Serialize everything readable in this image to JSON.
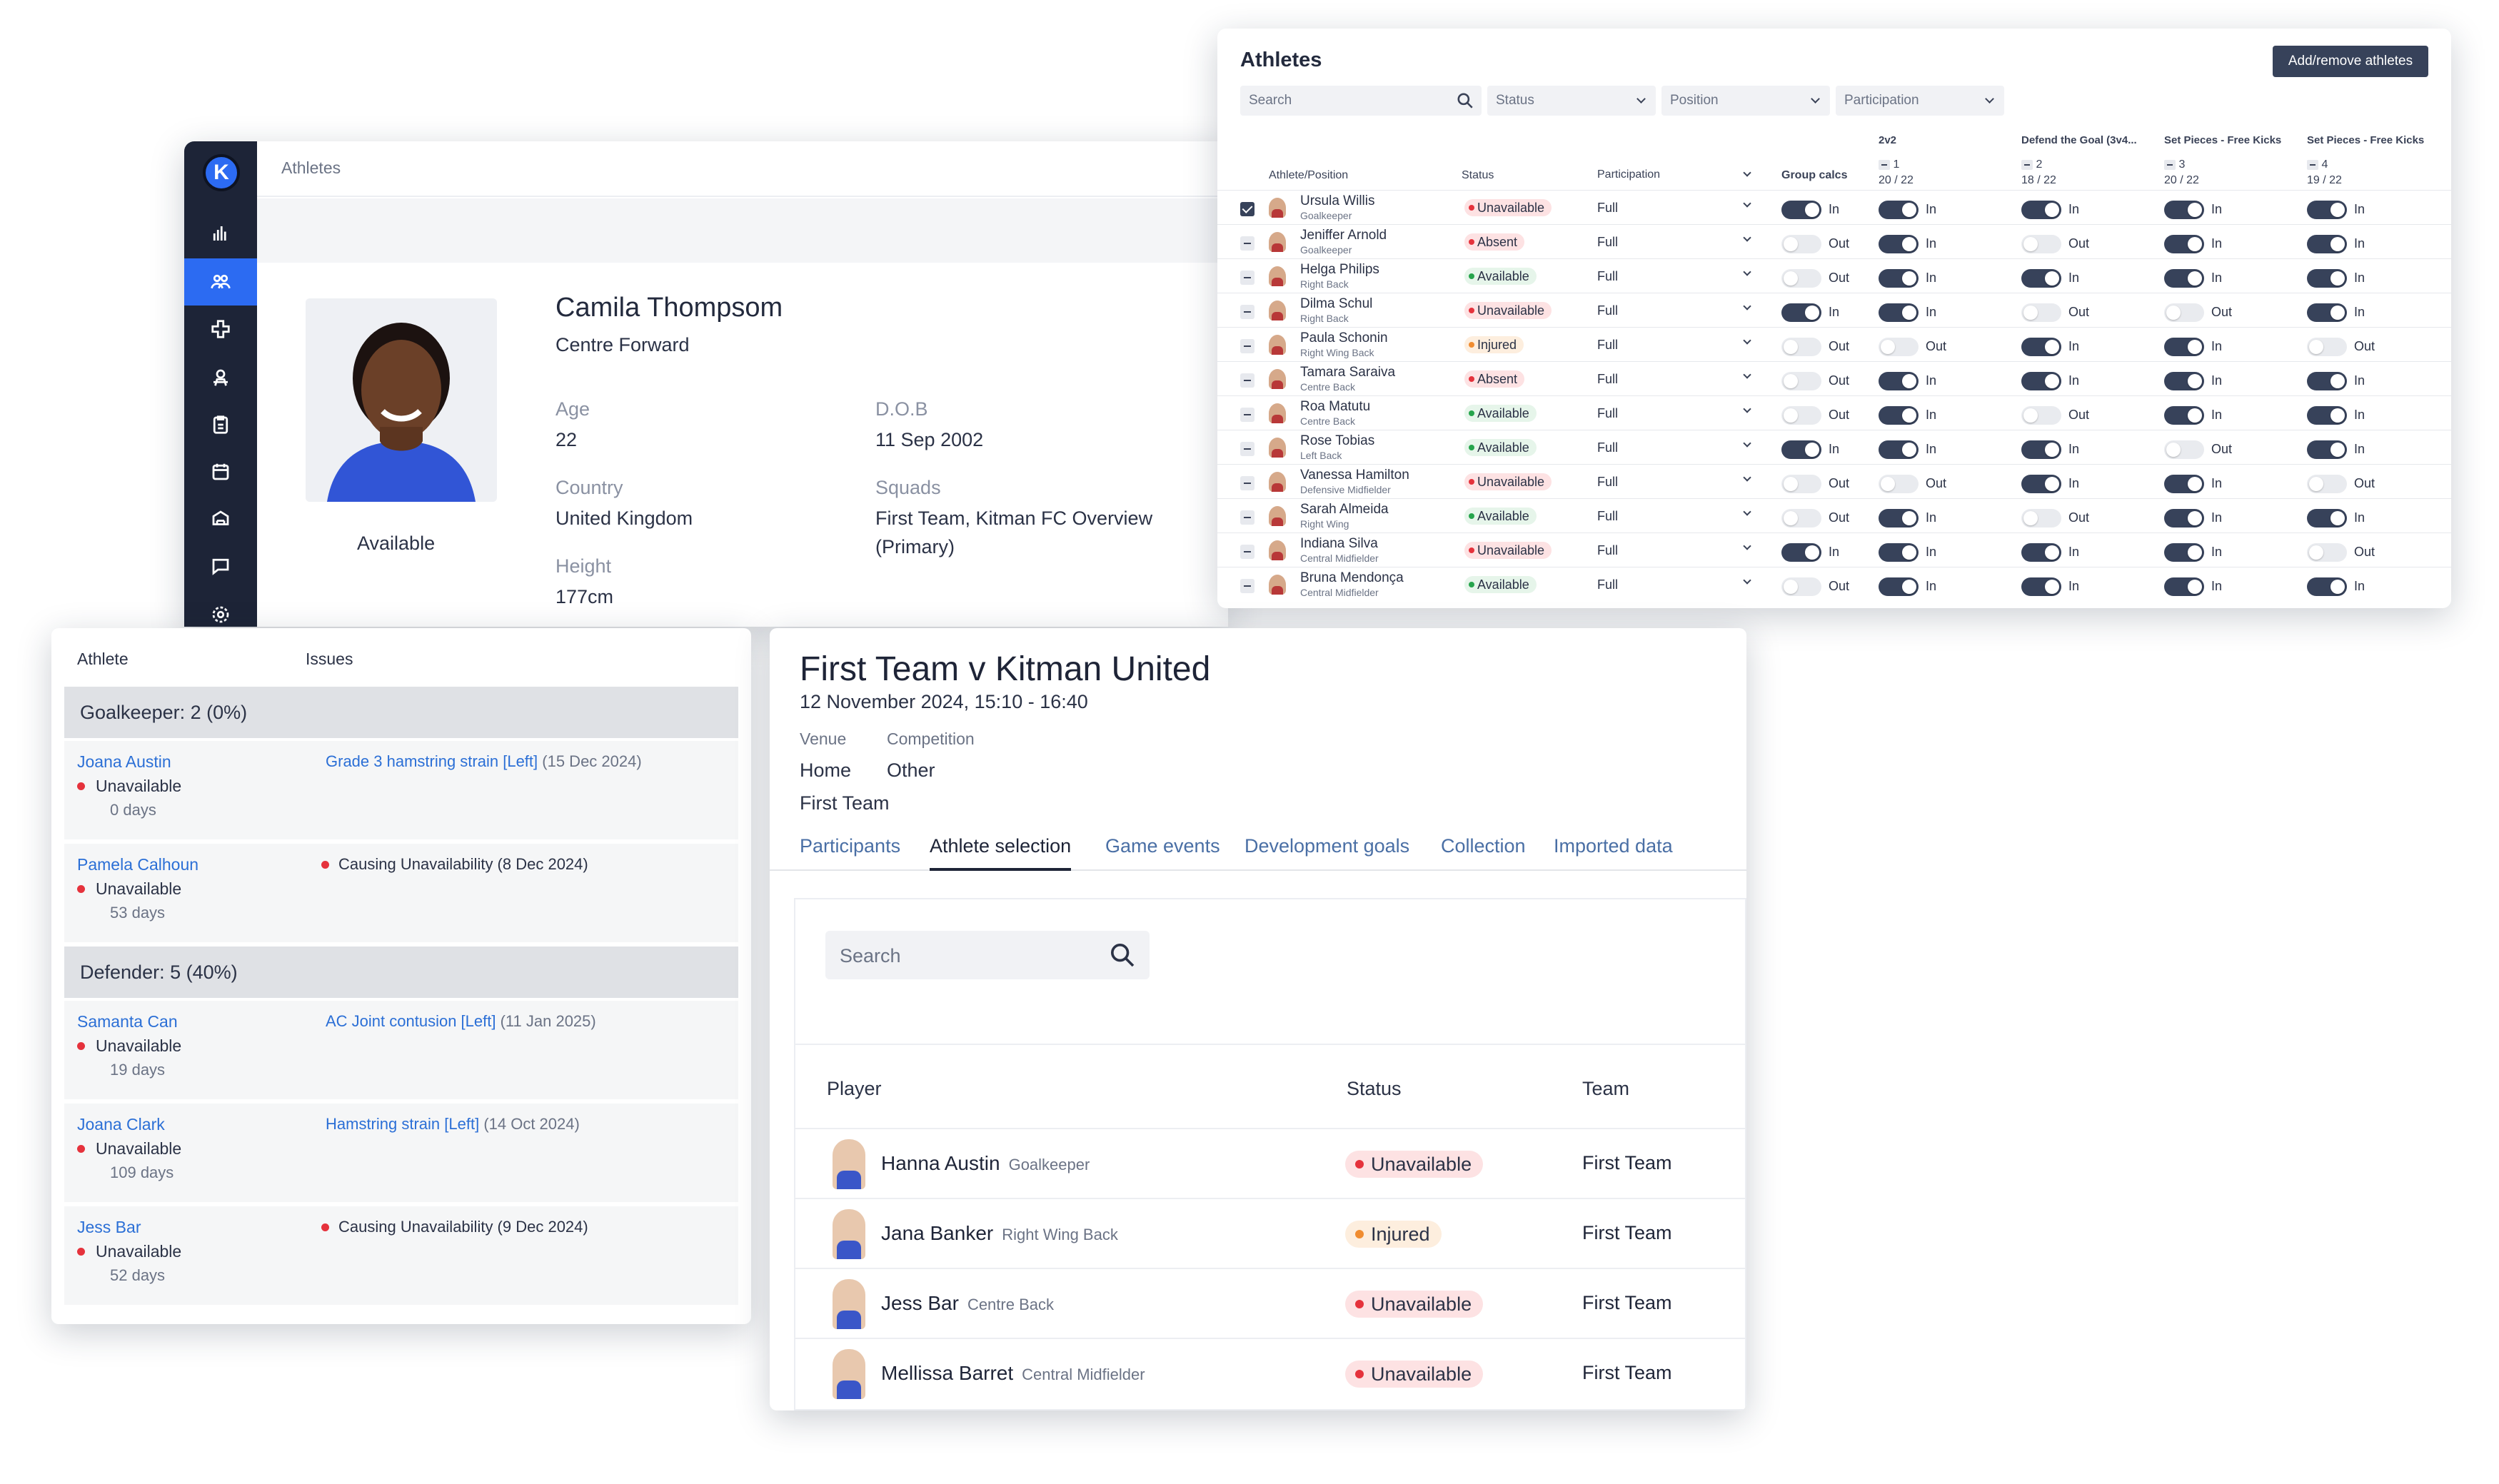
{
  "profile": {
    "breadcrumb": "Athletes",
    "name": "Camila Thompsom",
    "position": "Centre Forward",
    "status": "Available",
    "age_label": "Age",
    "age": "22",
    "dob_label": "D.O.B",
    "dob": "11 Sep 2002",
    "country_label": "Country",
    "country": "United Kingdom",
    "squads_label": "Squads",
    "squads": "First Team, Kitman FC Overview (Primary)",
    "height_label": "Height",
    "height": "177cm",
    "logo_letter": "K",
    "nav_icons": [
      "analytics-icon",
      "athletes-icon",
      "medical-icon",
      "performance-icon",
      "forms-icon",
      "calendar-icon",
      "workload-icon",
      "messaging-icon",
      "settings-icon"
    ]
  },
  "athletes_table": {
    "title": "Athletes",
    "add_button": "Add/remove athletes",
    "search_placeholder": "Search",
    "filters": [
      "Status",
      "Position",
      "Participation"
    ],
    "headers": {
      "athlete": "Athlete/Position",
      "status": "Status",
      "participation": "Participation",
      "group_calcs": "Group calcs"
    },
    "sessions": [
      {
        "title": "2v2",
        "num": "1",
        "count": "20 / 22"
      },
      {
        "title": "Defend the Goal (3v4...",
        "num": "2",
        "count": "18 / 22"
      },
      {
        "title": "Set Pieces - Free Kicks",
        "num": "3",
        "count": "20 / 22"
      },
      {
        "title": "Set Pieces - Free Kicks",
        "num": "4",
        "count": "19 / 22"
      }
    ],
    "rows": [
      {
        "name": "Ursula Willis",
        "pos": "Goalkeeper",
        "status": "Unavailable",
        "st": "u",
        "checked": true,
        "part": "Full",
        "toggles": [
          1,
          1,
          1,
          1,
          1
        ]
      },
      {
        "name": "Jeniffer Arnold",
        "pos": "Goalkeeper",
        "status": "Absent",
        "st": "u",
        "checked": false,
        "part": "Full",
        "toggles": [
          0,
          1,
          0,
          1,
          1
        ]
      },
      {
        "name": "Helga Philips",
        "pos": "Right Back",
        "status": "Available",
        "st": "a",
        "checked": false,
        "part": "Full",
        "toggles": [
          0,
          1,
          1,
          1,
          1
        ]
      },
      {
        "name": "Dilma Schul",
        "pos": "Right Back",
        "status": "Unavailable",
        "st": "u",
        "checked": false,
        "part": "Full",
        "toggles": [
          1,
          1,
          0,
          0,
          1
        ]
      },
      {
        "name": "Paula Schonin",
        "pos": "Right Wing Back",
        "status": "Injured",
        "st": "i",
        "checked": false,
        "part": "Full",
        "toggles": [
          0,
          0,
          1,
          1,
          0
        ]
      },
      {
        "name": "Tamara Saraiva",
        "pos": "Centre Back",
        "status": "Absent",
        "st": "u",
        "checked": false,
        "part": "Full",
        "toggles": [
          0,
          1,
          1,
          1,
          1
        ]
      },
      {
        "name": "Roa Matutu",
        "pos": "Centre Back",
        "status": "Available",
        "st": "a",
        "checked": false,
        "part": "Full",
        "toggles": [
          0,
          1,
          0,
          1,
          1
        ]
      },
      {
        "name": "Rose Tobias",
        "pos": "Left Back",
        "status": "Available",
        "st": "a",
        "checked": false,
        "part": "Full",
        "toggles": [
          1,
          1,
          1,
          0,
          1
        ]
      },
      {
        "name": "Vanessa Hamilton",
        "pos": "Defensive Midfielder",
        "status": "Unavailable",
        "st": "u",
        "checked": false,
        "part": "Full",
        "toggles": [
          0,
          0,
          1,
          1,
          0
        ]
      },
      {
        "name": "Sarah Almeida",
        "pos": "Right Wing",
        "status": "Available",
        "st": "a",
        "checked": false,
        "part": "Full",
        "toggles": [
          0,
          1,
          0,
          1,
          1
        ]
      },
      {
        "name": "Indiana Silva",
        "pos": "Central Midfielder",
        "status": "Unavailable",
        "st": "u",
        "checked": false,
        "part": "Full",
        "toggles": [
          1,
          1,
          1,
          1,
          0
        ]
      },
      {
        "name": "Bruna Mendonça",
        "pos": "Central Midfielder",
        "status": "Available",
        "st": "a",
        "checked": false,
        "part": "Full",
        "toggles": [
          0,
          1,
          1,
          1,
          1
        ]
      }
    ],
    "in_label": "In",
    "out_label": "Out"
  },
  "issues": {
    "header_athlete": "Athlete",
    "header_issues": "Issues",
    "groups": [
      {
        "label": "Goalkeeper: 2 (0%)",
        "rows": [
          {
            "name": "Joana Austin",
            "status": "Unavailable",
            "days": "0 days",
            "issue": "Grade 3 hamstring strain [Left]",
            "date": "(15 Dec 2024)",
            "causing": ""
          },
          {
            "name": "Pamela Calhoun",
            "status": "Unavailable",
            "days": "53 days",
            "issue": "",
            "date": "",
            "causing": "Causing Unavailability (8 Dec 2024)"
          }
        ]
      },
      {
        "label": "Defender: 5 (40%)",
        "rows": [
          {
            "name": "Samanta Can",
            "status": "Unavailable",
            "days": "19 days",
            "issue": "AC Joint contusion [Left]",
            "date": "(11 Jan 2025)",
            "causing": ""
          },
          {
            "name": "Joana Clark",
            "status": "Unavailable",
            "days": "109 days",
            "issue": "Hamstring strain [Left]",
            "date": "(14 Oct 2024)",
            "causing": ""
          },
          {
            "name": "Jess Bar",
            "status": "Unavailable",
            "days": "52 days",
            "issue": "",
            "date": "",
            "causing": "Causing Unavailability (9 Dec 2024)"
          }
        ]
      }
    ]
  },
  "event": {
    "title": "First Team v Kitman United",
    "datetime": "12 November 2024, 15:10 - 16:40",
    "venue_label": "Venue",
    "venue": "Home",
    "competition_label": "Competition",
    "competition": "Other",
    "team": "First Team",
    "tabs": [
      "Participants",
      "Athlete selection",
      "Game events",
      "Development goals",
      "Collection",
      "Imported data"
    ],
    "active_tab": 1,
    "search_placeholder": "Search",
    "headers": {
      "player": "Player",
      "status": "Status",
      "team": "Team"
    },
    "players": [
      {
        "name": "Hanna Austin",
        "pos": "Goalkeeper",
        "status": "Unavailable",
        "st": "u",
        "team": "First Team"
      },
      {
        "name": "Jana Banker",
        "pos": "Right Wing Back",
        "status": "Injured",
        "st": "i",
        "team": "First Team"
      },
      {
        "name": "Jess Bar",
        "pos": "Centre Back",
        "status": "Unavailable",
        "st": "u",
        "team": "First Team"
      },
      {
        "name": "Mellissa Barret",
        "pos": "Central Midfielder",
        "status": "Unavailable",
        "st": "u",
        "team": "First Team"
      }
    ]
  }
}
